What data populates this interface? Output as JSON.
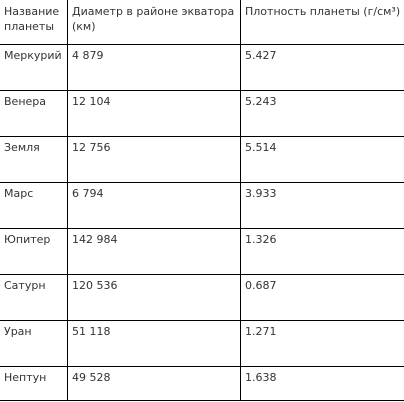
{
  "table": {
    "headers": [
      "Название планеты",
      "Диаметр в районе экватора (км)",
      "Плотность планеты (г/см³)"
    ],
    "rows": [
      [
        "Меркурий",
        "4 879",
        "5.427"
      ],
      [
        "Венера",
        "12 104",
        "5.243"
      ],
      [
        "Земля",
        "12 756",
        "5.514"
      ],
      [
        "Марс",
        "6 794",
        "3.933"
      ],
      [
        "Юпитер",
        "142 984",
        "1.326"
      ],
      [
        "Сатурн",
        "120 536",
        "0.687"
      ],
      [
        "Уран",
        "51 118",
        "1.271"
      ],
      [
        "Нептун",
        "49 528",
        "1.638"
      ]
    ]
  }
}
